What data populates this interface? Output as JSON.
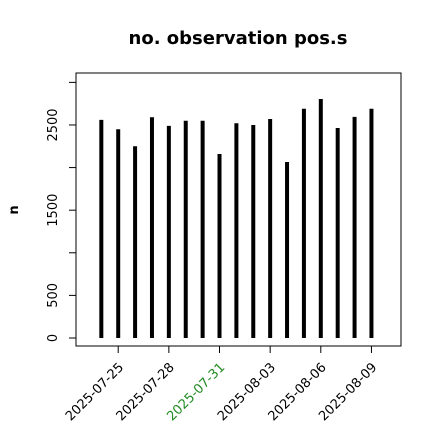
{
  "chart_data": {
    "type": "spike",
    "title": "no. observation pos.s",
    "y_label": "n",
    "x": [
      "2025-07-24",
      "2025-07-25",
      "2025-07-26",
      "2025-07-27",
      "2025-07-28",
      "2025-07-29",
      "2025-07-30",
      "2025-07-31",
      "2025-08-01",
      "2025-08-02",
      "2025-08-03",
      "2025-08-04",
      "2025-08-05",
      "2025-08-06",
      "2025-08-07",
      "2025-08-08",
      "2025-08-09"
    ],
    "values": [
      2560,
      2450,
      2250,
      2590,
      2490,
      2550,
      2550,
      2160,
      2520,
      2500,
      2570,
      2065,
      2690,
      2805,
      2465,
      2595,
      2690
    ],
    "color": "#000000",
    "xlim": [
      "2025-07-22T12:00",
      "2025-08-10T18:00"
    ],
    "xticks": [
      "2025-07-25",
      "2025-07-28",
      "2025-07-31",
      "2025-08-03",
      "2025-08-06",
      "2025-08-09"
    ],
    "xtick_colors": [
      "#000000",
      "#000000",
      "#228b22",
      "#000000",
      "#000000",
      "#000000"
    ],
    "ylim": [
      -94,
      3110
    ],
    "yticks": [
      0,
      500,
      {
        "value": 1000,
        "label": null
      },
      1500,
      {
        "value": 2000,
        "label": null
      },
      2500,
      {
        "value": 3000,
        "label": null
      }
    ],
    "grid": false
  }
}
